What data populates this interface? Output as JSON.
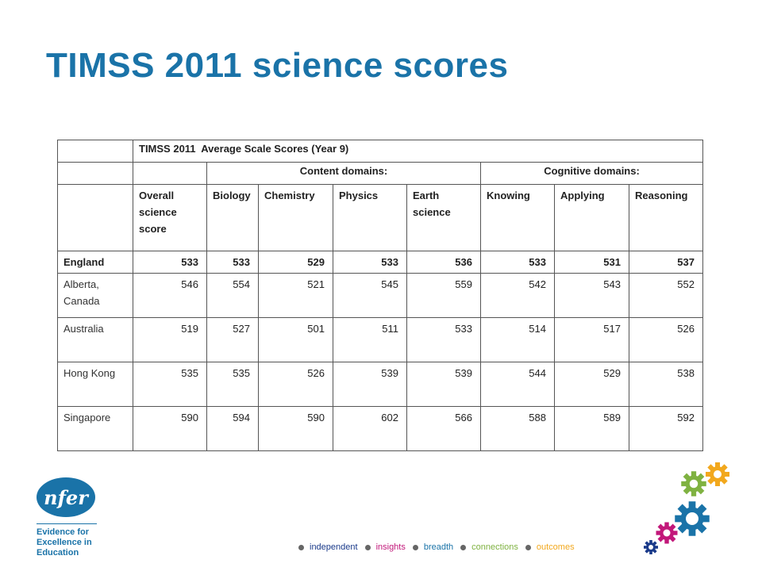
{
  "title": "TIMSS 2011 science scores",
  "table": {
    "caption": "TIMSS 2011  Average Scale Scores (Year 9)",
    "content_domains": "Content domains:",
    "cognitive_domains": "Cognitive domains:",
    "col_lines": [
      [
        "Overall",
        "science",
        "score"
      ],
      [
        "Biology"
      ],
      [
        "Chemistry"
      ],
      [
        "Physics"
      ],
      [
        "Earth",
        "science"
      ],
      [
        "Knowing"
      ],
      [
        "Applying"
      ],
      [
        "Reasoning"
      ]
    ],
    "rows": [
      {
        "country_lines": [
          "England"
        ],
        "values": [
          "533",
          "533",
          "529",
          "533",
          "536",
          "533",
          "531",
          "537"
        ]
      },
      {
        "country_lines": [
          "Alberta,",
          "Canada"
        ],
        "values": [
          "546",
          "554",
          "521",
          "545",
          "559",
          "542",
          "543",
          "552"
        ]
      },
      {
        "country_lines": [
          "Australia"
        ],
        "values": [
          "519",
          "527",
          "501",
          "511",
          "533",
          "514",
          "517",
          "526"
        ]
      },
      {
        "country_lines": [
          "Hong Kong"
        ],
        "values": [
          "535",
          "535",
          "526",
          "539",
          "539",
          "544",
          "529",
          "538"
        ]
      },
      {
        "country_lines": [
          "Singapore"
        ],
        "values": [
          "590",
          "594",
          "590",
          "602",
          "566",
          "588",
          "589",
          "592"
        ]
      }
    ]
  },
  "logo": {
    "mark": "nfer",
    "text_lines": [
      "Evidence for",
      "Excellence in",
      "Education"
    ]
  },
  "tagline": [
    {
      "word": "independent",
      "color": "#1a3a8a"
    },
    {
      "word": "insights",
      "color": "#c2187a"
    },
    {
      "word": "breadth",
      "color": "#1a73a8"
    },
    {
      "word": "connections",
      "color": "#7fb241"
    },
    {
      "word": "outcomes",
      "color": "#f2a81d"
    }
  ],
  "gear_colors": {
    "orange": "#f2a81d",
    "green": "#7fb241",
    "blue": "#1a73a8",
    "magenta": "#c2187a",
    "navy": "#1a3a8a"
  },
  "icons": [
    "gear-icon"
  ]
}
